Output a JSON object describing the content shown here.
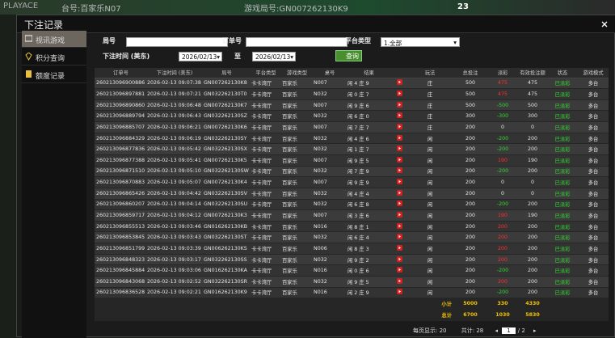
{
  "background": {
    "table_label": "台号:百家乐N07",
    "round_label": "游戏局号:GN007262130K9",
    "brand": "PLAYACE",
    "count": "23"
  },
  "dialog": {
    "title": "下注记录"
  },
  "sidebar": [
    "视讯游戏",
    "积分查询",
    "额度记录"
  ],
  "filters": {
    "round_label": "局号",
    "order_label": "订单号",
    "platform_label": "平台类型",
    "platform_value": "1.全部",
    "time_label": "下注时间 (美东)",
    "date_from": "2026/02/13",
    "to": "至",
    "date_to": "2026/02/13",
    "query": "查询"
  },
  "table": {
    "headers": [
      "订单号",
      "下注时间 (美东)",
      "局号",
      "平台类型",
      "游戏类型",
      "桌号",
      "结果",
      "玩法",
      "总投注",
      "派彩",
      "有效投注额",
      "状态",
      "游戏模式"
    ],
    "rows": [
      [
        "260213096900886",
        "2026-02-13 09:07:38",
        "GN007262130K8",
        "卡卡湾厅",
        "百家乐",
        "N007",
        "闲 4 庄 9",
        "庄",
        500,
        475,
        475,
        "已派彩",
        "多台"
      ],
      [
        "260213096897881",
        "2026-02-13 09:07:21",
        "GN032262130T0",
        "卡卡湾厅",
        "百家乐",
        "N032",
        "闲 0 庄 7",
        "庄",
        500,
        475,
        475,
        "已派彩",
        "多台"
      ],
      [
        "260213096890860",
        "2026-02-13 09:06:48",
        "GN007262130K7",
        "卡卡湾厅",
        "百家乐",
        "N007",
        "闲 9 庄 6",
        "庄",
        500,
        -500,
        500,
        "已派彩",
        "多台"
      ],
      [
        "260213096889794",
        "2026-02-13 09:06:43",
        "GN032262130SZ",
        "卡卡湾厅",
        "百家乐",
        "N032",
        "闲 6 庄 0",
        "庄",
        300,
        -300,
        300,
        "已派彩",
        "多台"
      ],
      [
        "260213096885707",
        "2026-02-13 09:06:21",
        "GN007262130K6",
        "卡卡湾厅",
        "百家乐",
        "N007",
        "闲 7 庄 7",
        "庄",
        200,
        0,
        0,
        "已派彩",
        "多台"
      ],
      [
        "260213096884329",
        "2026-02-13 09:06:19",
        "GN032262130SY",
        "卡卡湾厅",
        "百家乐",
        "N032",
        "闲 4 庄 6",
        "闲",
        200,
        -200,
        200,
        "已派彩",
        "多台"
      ],
      [
        "260213096877836",
        "2026-02-13 09:05:42",
        "GN032262130SX",
        "卡卡湾厅",
        "百家乐",
        "N032",
        "闲 1 庄 7",
        "闲",
        200,
        -200,
        200,
        "已派彩",
        "多台"
      ],
      [
        "260213096877388",
        "2026-02-13 09:05:41",
        "GN007262130K5",
        "卡卡湾厅",
        "百家乐",
        "N007",
        "闲 9 庄 5",
        "闲",
        200,
        190,
        190,
        "已派彩",
        "多台"
      ],
      [
        "260213096871510",
        "2026-02-13 09:05:10",
        "GN032262130SW",
        "卡卡湾厅",
        "百家乐",
        "N032",
        "闲 7 庄 9",
        "闲",
        200,
        -200,
        200,
        "已派彩",
        "多台"
      ],
      [
        "260213096870883",
        "2026-02-13 09:05:07",
        "GN007262130K4",
        "卡卡湾厅",
        "百家乐",
        "N007",
        "闲 9 庄 9",
        "闲",
        200,
        0,
        0,
        "已派彩",
        "多台"
      ],
      [
        "260213096865426",
        "2026-02-13 09:04:42",
        "GN032262130SV",
        "卡卡湾厅",
        "百家乐",
        "N032",
        "闲 4 庄 4",
        "闲",
        200,
        0,
        0,
        "已派彩",
        "多台"
      ],
      [
        "260213096860207",
        "2026-02-13 09:04:14",
        "GN032262130SU",
        "卡卡湾厅",
        "百家乐",
        "N032",
        "闲 6 庄 8",
        "闲",
        200,
        -200,
        200,
        "已派彩",
        "多台"
      ],
      [
        "260213096859717",
        "2026-02-13 09:04:12",
        "GN007262130K3",
        "卡卡湾厅",
        "百家乐",
        "N007",
        "闲 3 庄 6",
        "闲",
        200,
        190,
        190,
        "已派彩",
        "多台"
      ],
      [
        "260213096855513",
        "2026-02-13 09:03:46",
        "GN016262130KB",
        "卡卡湾厅",
        "百家乐",
        "N016",
        "闲 8 庄 1",
        "闲",
        200,
        200,
        200,
        "已派彩",
        "多台"
      ],
      [
        "260213096853845",
        "2026-02-13 09:03:43",
        "GN032262130ST",
        "卡卡湾厅",
        "百家乐",
        "N032",
        "闲 6 庄 4",
        "闲",
        200,
        200,
        200,
        "已派彩",
        "多台"
      ],
      [
        "260213096851799",
        "2026-02-13 09:03:39",
        "GN006262130KS",
        "卡卡湾厅",
        "百家乐",
        "N006",
        "闲 8 庄 3",
        "闲",
        200,
        200,
        200,
        "已派彩",
        "多台"
      ],
      [
        "260213096848323",
        "2026-02-13 09:03:17",
        "GN032262130SS",
        "卡卡湾厅",
        "百家乐",
        "N032",
        "闲 9 庄 2",
        "闲",
        200,
        200,
        200,
        "已派彩",
        "多台"
      ],
      [
        "260213096845884",
        "2026-02-13 09:03:06",
        "GN016262130KA",
        "卡卡湾厅",
        "百家乐",
        "N016",
        "闲 0 庄 6",
        "闲",
        200,
        -200,
        200,
        "已派彩",
        "多台"
      ],
      [
        "260213096843068",
        "2026-02-13 09:02:52",
        "GN032262130SR",
        "卡卡湾厅",
        "百家乐",
        "N032",
        "闲 9 庄 5",
        "闲",
        200,
        200,
        200,
        "已派彩",
        "多台"
      ],
      [
        "260213096836528",
        "2026-02-13 09:02:21",
        "GN016262130K9",
        "卡卡湾厅",
        "百家乐",
        "N016",
        "闲 2 庄 9",
        "闲",
        200,
        -200,
        200,
        "已派彩",
        "多台"
      ]
    ],
    "subtotal": {
      "label": "小计",
      "bet": 5000,
      "payout": 330,
      "valid": 4330
    },
    "total": {
      "label": "总计",
      "bet": 6700,
      "payout": 1030,
      "valid": 5830
    }
  },
  "pagination": {
    "per_page_label": "每页显示:",
    "per_page": 20,
    "total_label": "共计:",
    "total": 28,
    "page": 1,
    "pages": 2
  }
}
